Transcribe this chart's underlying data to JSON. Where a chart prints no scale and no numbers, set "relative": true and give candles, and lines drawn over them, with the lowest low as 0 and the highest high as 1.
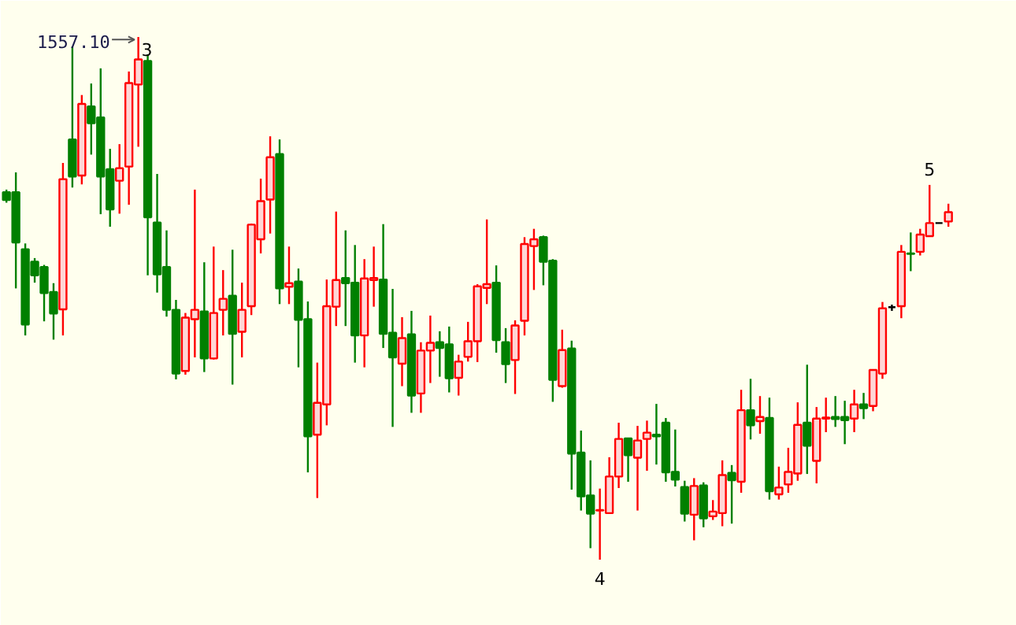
{
  "chart_data": {
    "type": "candlestick",
    "relative": true,
    "categories": [
      null,
      null,
      null,
      null,
      null,
      null,
      null,
      null,
      null,
      null,
      null,
      null,
      null,
      null,
      null,
      null,
      null,
      null,
      null,
      null,
      null,
      null,
      null,
      null,
      null,
      null,
      null,
      null,
      null,
      null,
      null,
      null,
      null,
      null,
      null,
      null,
      null,
      null,
      null,
      null,
      null,
      null,
      null,
      null,
      null,
      null,
      null,
      null,
      null,
      null,
      null,
      null,
      null,
      null,
      null,
      null,
      null,
      null,
      null,
      null,
      null,
      null,
      null,
      null,
      null,
      null,
      null,
      null,
      null,
      null,
      null,
      null,
      null,
      null,
      null,
      null,
      null,
      null,
      null,
      null,
      null,
      null,
      null,
      null,
      null,
      null,
      null,
      null,
      null,
      null,
      null,
      null,
      null,
      null,
      null,
      null,
      null,
      null,
      null,
      null,
      null
    ],
    "ohlc": [
      [
        0.703,
        0.708,
        0.683,
        0.688
      ],
      [
        0.703,
        0.741,
        0.519,
        0.607
      ],
      [
        0.594,
        0.605,
        0.429,
        0.45
      ],
      [
        0.57,
        0.577,
        0.53,
        0.544
      ],
      [
        0.56,
        0.564,
        0.456,
        0.51
      ],
      [
        0.512,
        0.529,
        0.421,
        0.471
      ],
      [
        0.479,
        0.759,
        0.429,
        0.728
      ],
      [
        0.804,
        0.982,
        0.712,
        0.733
      ],
      [
        0.735,
        0.889,
        0.718,
        0.872
      ],
      [
        0.867,
        0.911,
        0.775,
        0.835
      ],
      [
        0.846,
        0.94,
        0.661,
        0.733
      ],
      [
        0.747,
        0.786,
        0.637,
        0.67
      ],
      [
        0.725,
        0.795,
        0.662,
        0.749
      ],
      [
        0.752,
        0.934,
        0.679,
        0.912
      ],
      [
        0.909,
        1,
        0.79,
        0.957
      ],
      [
        0.954,
        0.967,
        0.544,
        0.655
      ],
      [
        0.645,
        0.738,
        0.511,
        0.546
      ],
      [
        0.56,
        0.63,
        0.465,
        0.478
      ],
      [
        0.478,
        0.497,
        0.345,
        0.356
      ],
      [
        0.361,
        0.472,
        0.354,
        0.463
      ],
      [
        0.46,
        0.708,
        0.387,
        0.478
      ],
      [
        0.475,
        0.569,
        0.359,
        0.385
      ],
      [
        0.385,
        0.599,
        0.383,
        0.472
      ],
      [
        0.478,
        0.554,
        0.429,
        0.499
      ],
      [
        0.505,
        0.593,
        0.335,
        0.432
      ],
      [
        0.436,
        0.53,
        0.387,
        0.478
      ],
      [
        0.485,
        0.643,
        0.468,
        0.641
      ],
      [
        0.613,
        0.729,
        0.586,
        0.686
      ],
      [
        0.689,
        0.81,
        0.624,
        0.77
      ],
      [
        0.776,
        0.804,
        0.489,
        0.519
      ],
      [
        0.522,
        0.599,
        0.489,
        0.529
      ],
      [
        0.532,
        0.557,
        0.368,
        0.459
      ],
      [
        0.46,
        0.494,
        0.167,
        0.236
      ],
      [
        0.239,
        0.377,
        0.118,
        0.3
      ],
      [
        0.297,
        0.536,
        0.257,
        0.485
      ],
      [
        0.484,
        0.666,
        0.447,
        0.535
      ],
      [
        0.539,
        0.63,
        0.447,
        0.529
      ],
      [
        0.53,
        0.602,
        0.377,
        0.429
      ],
      [
        0.429,
        0.575,
        0.368,
        0.538
      ],
      [
        0.535,
        0.599,
        0.484,
        0.539
      ],
      [
        0.536,
        0.642,
        0.405,
        0.432
      ],
      [
        0.434,
        0.518,
        0.254,
        0.387
      ],
      [
        0.375,
        0.464,
        0.332,
        0.424
      ],
      [
        0.431,
        0.476,
        0.281,
        0.314
      ],
      [
        0.318,
        0.416,
        0.281,
        0.4
      ],
      [
        0.4,
        0.467,
        0.338,
        0.415
      ],
      [
        0.416,
        0.437,
        0.35,
        0.405
      ],
      [
        0.412,
        0.446,
        0.32,
        0.347
      ],
      [
        0.348,
        0.392,
        0.314,
        0.379
      ],
      [
        0.388,
        0.455,
        0.379,
        0.418
      ],
      [
        0.418,
        0.527,
        0.378,
        0.523
      ],
      [
        0.52,
        0.651,
        0.489,
        0.527
      ],
      [
        0.53,
        0.563,
        0.396,
        0.42
      ],
      [
        0.416,
        0.443,
        0.338,
        0.374
      ],
      [
        0.382,
        0.458,
        0.317,
        0.448
      ],
      [
        0.457,
        0.617,
        0.429,
        0.604
      ],
      [
        0.6,
        0.633,
        0.516,
        0.613
      ],
      [
        0.617,
        0.62,
        0.525,
        0.57
      ],
      [
        0.572,
        0.575,
        0.302,
        0.344
      ],
      [
        0.332,
        0.44,
        0.329,
        0.401
      ],
      [
        0.404,
        0.419,
        0.134,
        0.203
      ],
      [
        0.205,
        0.247,
        0.094,
        0.121
      ],
      [
        0.123,
        0.19,
        0.022,
        0.088
      ],
      [
        0.094,
        0.136,
        0,
        0.095
      ],
      [
        0.089,
        0.196,
        0.089,
        0.159
      ],
      [
        0.159,
        0.262,
        0.137,
        0.231
      ],
      [
        0.232,
        0.232,
        0.149,
        0.2
      ],
      [
        0.195,
        0.256,
        0.094,
        0.228
      ],
      [
        0.231,
        0.266,
        0.17,
        0.243
      ],
      [
        0.239,
        0.298,
        0.182,
        0.236
      ],
      [
        0.262,
        0.271,
        0.149,
        0.167
      ],
      [
        0.168,
        0.249,
        0.14,
        0.153
      ],
      [
        0.139,
        0.151,
        0.073,
        0.088
      ],
      [
        0.086,
        0.156,
        0.037,
        0.141
      ],
      [
        0.142,
        0.148,
        0.062,
        0.079
      ],
      [
        0.083,
        0.114,
        0.076,
        0.092
      ],
      [
        0.089,
        0.19,
        0.064,
        0.162
      ],
      [
        0.166,
        0.181,
        0.069,
        0.152
      ],
      [
        0.149,
        0.325,
        0.128,
        0.286
      ],
      [
        0.286,
        0.346,
        0.23,
        0.257
      ],
      [
        0.265,
        0.313,
        0.241,
        0.273
      ],
      [
        0.271,
        0.31,
        0.115,
        0.131
      ],
      [
        0.125,
        0.178,
        0.115,
        0.138
      ],
      [
        0.144,
        0.214,
        0.128,
        0.168
      ],
      [
        0.165,
        0.301,
        0.151,
        0.258
      ],
      [
        0.262,
        0.373,
        0.164,
        0.218
      ],
      [
        0.189,
        0.292,
        0.146,
        0.27
      ],
      [
        0.27,
        0.31,
        0.244,
        0.272
      ],
      [
        0.273,
        0.313,
        0.254,
        0.269
      ],
      [
        0.273,
        0.304,
        0.221,
        0.267
      ],
      [
        0.27,
        0.325,
        0.244,
        0.297
      ],
      [
        0.297,
        0.319,
        0.269,
        0.29
      ],
      [
        0.294,
        0.363,
        0.284,
        0.363
      ],
      [
        0.356,
        0.493,
        0.346,
        0.481
      ],
      [
        0.483,
        0.488,
        0.476,
        0.483
      ],
      [
        0.485,
        0.602,
        0.462,
        0.589
      ],
      [
        0.586,
        0.626,
        0.552,
        0.585
      ],
      [
        0.589,
        0.633,
        0.582,
        0.622
      ],
      [
        0.619,
        0.717,
        0.619,
        0.644
      ],
      [
        0.644,
        0.644,
        0.644,
        0.644
      ],
      [
        0.647,
        0.681,
        0.637,
        0.665
      ]
    ],
    "annotations": [
      "1557.10",
      "3",
      {
        "text": "4",
        "y": 0
      },
      {
        "text": "5",
        "y": 0.717
      }
    ]
  }
}
